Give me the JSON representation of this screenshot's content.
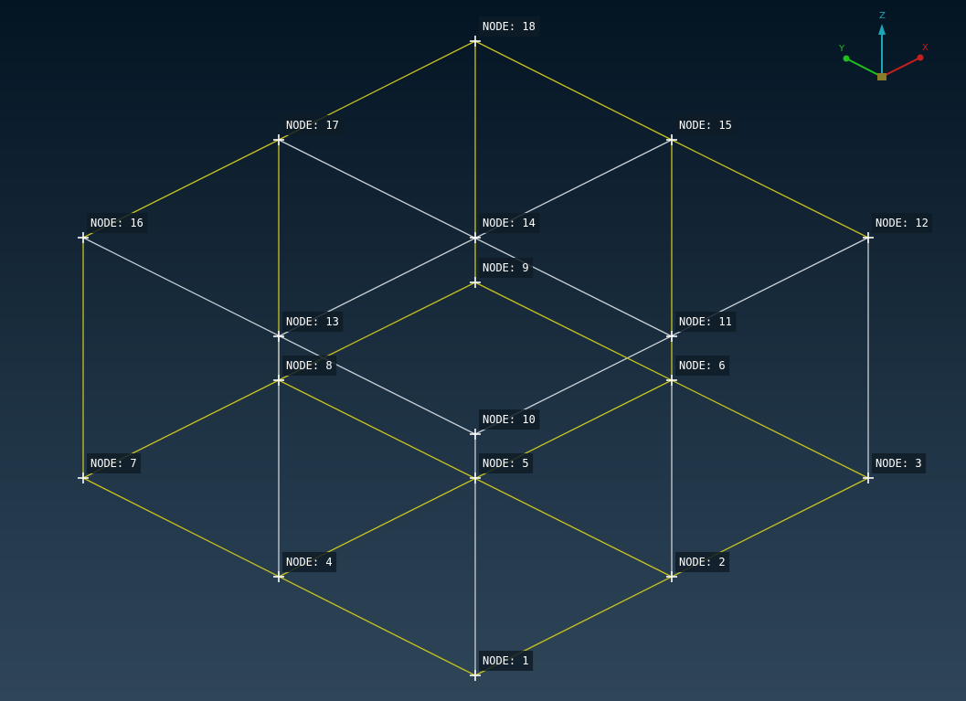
{
  "viewport": {
    "name": "3D mesh viewport",
    "label_prefix": "NODE: "
  },
  "colors": {
    "yellow_edge": "#c8c21f",
    "white_edge": "#c9d0d6",
    "node_marker": "#ffffff",
    "axis_x": "#c81e1e",
    "axis_y": "#1fbf1f",
    "axis_z": "#1aa7b8",
    "axis_origin": "#8a7d2a"
  },
  "nodes": [
    {
      "id": "1"
    },
    {
      "id": "2"
    },
    {
      "id": "3"
    },
    {
      "id": "4"
    },
    {
      "id": "5"
    },
    {
      "id": "6"
    },
    {
      "id": "7"
    },
    {
      "id": "8"
    },
    {
      "id": "9"
    },
    {
      "id": "10"
    },
    {
      "id": "11"
    },
    {
      "id": "12"
    },
    {
      "id": "13"
    },
    {
      "id": "14"
    },
    {
      "id": "15"
    },
    {
      "id": "16"
    },
    {
      "id": "17"
    },
    {
      "id": "18"
    }
  ],
  "edges": [
    {
      "from": "18",
      "to": "17",
      "color": "yellow"
    },
    {
      "from": "18",
      "to": "15",
      "color": "yellow"
    },
    {
      "from": "18",
      "to": "9",
      "color": "yellow"
    },
    {
      "from": "17",
      "to": "16",
      "color": "yellow"
    },
    {
      "from": "17",
      "to": "8",
      "color": "yellow"
    },
    {
      "from": "17",
      "to": "11",
      "color": "white"
    },
    {
      "from": "15",
      "to": "12",
      "color": "yellow"
    },
    {
      "from": "15",
      "to": "6",
      "color": "yellow"
    },
    {
      "from": "15",
      "to": "13",
      "color": "white"
    },
    {
      "from": "16",
      "to": "7",
      "color": "yellow"
    },
    {
      "from": "16",
      "to": "10",
      "color": "white"
    },
    {
      "from": "12",
      "to": "10",
      "color": "white"
    },
    {
      "from": "12",
      "to": "3",
      "color": "white"
    },
    {
      "from": "9",
      "to": "8",
      "color": "yellow"
    },
    {
      "from": "9",
      "to": "3",
      "color": "yellow"
    },
    {
      "from": "8",
      "to": "7",
      "color": "yellow"
    },
    {
      "from": "8",
      "to": "2",
      "color": "yellow"
    },
    {
      "from": "6",
      "to": "4",
      "color": "yellow"
    },
    {
      "from": "6",
      "to": "2",
      "color": "white"
    },
    {
      "from": "7",
      "to": "1",
      "color": "yellow"
    },
    {
      "from": "3",
      "to": "1",
      "color": "yellow"
    },
    {
      "from": "13",
      "to": "4",
      "color": "white"
    },
    {
      "from": "10",
      "to": "1",
      "color": "white"
    }
  ],
  "axis_triad": {
    "x_label": "X",
    "y_label": "Y",
    "z_label": "Z"
  }
}
